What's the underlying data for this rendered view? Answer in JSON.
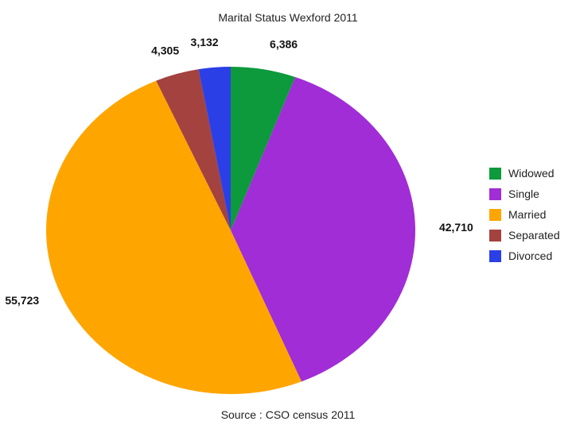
{
  "chart_data": {
    "type": "pie",
    "title": "Marital Status Wexford 2011",
    "footer": "Source : CSO census 2011",
    "legend_position": "right",
    "slices": [
      {
        "name": "Widowed",
        "value": 6386,
        "label": "6,386",
        "color": "#0c9a3c"
      },
      {
        "name": "Single",
        "value": 42710,
        "label": "42,710",
        "color": "#a02dd6"
      },
      {
        "name": "Married",
        "value": 55723,
        "label": "55,723",
        "color": "#ffa500"
      },
      {
        "name": "Separated",
        "value": 4305,
        "label": "4,305",
        "color": "#a3423f"
      },
      {
        "name": "Divorced",
        "value": 3132,
        "label": "3,132",
        "color": "#2b3fe6"
      }
    ]
  }
}
